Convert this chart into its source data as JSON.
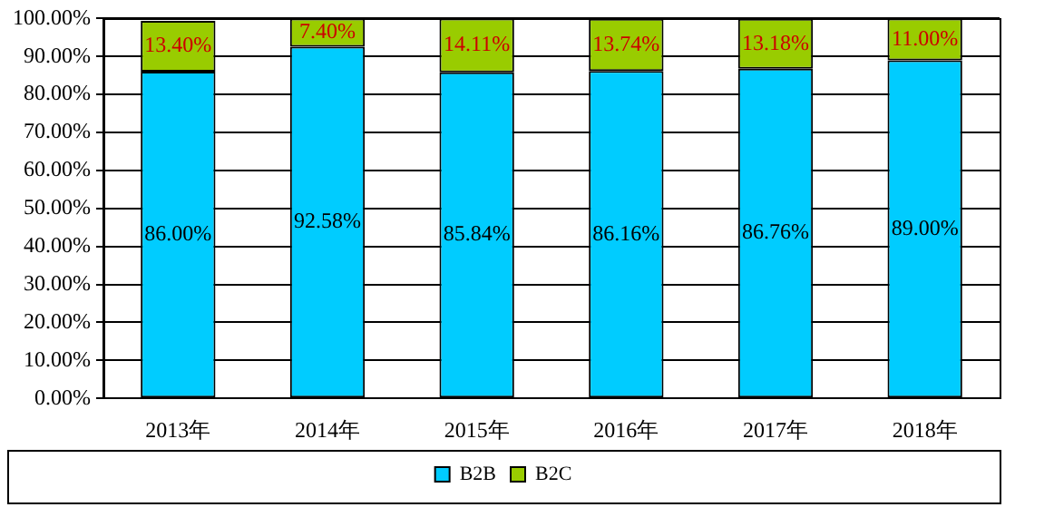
{
  "chart_data": {
    "type": "bar",
    "stacked": true,
    "categories": [
      "2013年",
      "2014年",
      "2015年",
      "2016年",
      "2017年",
      "2018年"
    ],
    "series": [
      {
        "name": "B2B",
        "color": "#00ccff",
        "values": [
          86.0,
          92.58,
          85.84,
          86.16,
          86.76,
          89.0
        ],
        "value_labels": [
          "86.00%",
          "92.58%",
          "85.84%",
          "86.16%",
          "86.76%",
          "89.00%"
        ]
      },
      {
        "name": "B2C",
        "color": "#99cc00",
        "values": [
          13.4,
          7.4,
          14.11,
          13.74,
          13.18,
          11.0
        ],
        "value_labels": [
          "13.40%",
          "7.40%",
          "14.11%",
          "13.74%",
          "13.18%",
          "11.00%"
        ]
      }
    ],
    "ylim": [
      0,
      100
    ],
    "yticks": [
      {
        "value": 0,
        "label": "0.00%"
      },
      {
        "value": 10,
        "label": "10.00%"
      },
      {
        "value": 20,
        "label": "20.00%"
      },
      {
        "value": 30,
        "label": "30.00%"
      },
      {
        "value": 40,
        "label": "40.00%"
      },
      {
        "value": 50,
        "label": "50.00%"
      },
      {
        "value": 60,
        "label": "60.00%"
      },
      {
        "value": 70,
        "label": "70.00%"
      },
      {
        "value": 80,
        "label": "80.00%"
      },
      {
        "value": 90,
        "label": "90.00%"
      },
      {
        "value": 100,
        "label": "100.00%"
      }
    ],
    "grid": "y",
    "legend": "bottom"
  }
}
